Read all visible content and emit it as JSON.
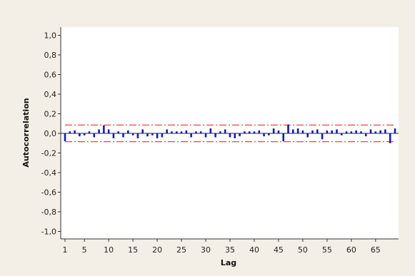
{
  "chart_data": {
    "type": "bar",
    "title": "",
    "xlabel": "Lag",
    "ylabel": "Autocorrelation",
    "ylim": [
      -1.0,
      1.0
    ],
    "xlim": [
      1,
      69
    ],
    "yticks": [
      1.0,
      0.8,
      0.6,
      0.4,
      0.2,
      0.0,
      -0.2,
      -0.4,
      -0.6,
      -0.8,
      -1.0
    ],
    "ytick_labels": [
      "1,0",
      "0,8",
      "0,6",
      "0,4",
      "0,2",
      "0,0",
      "-0,2",
      "-0,4",
      "-0,6",
      "-0,8",
      "-1,0"
    ],
    "xticks": [
      1,
      5,
      10,
      15,
      20,
      25,
      30,
      35,
      40,
      45,
      50,
      55,
      60,
      65
    ],
    "xtick_labels": [
      "1",
      "5",
      "10",
      "15",
      "20",
      "25",
      "30",
      "35",
      "40",
      "45",
      "50",
      "55",
      "60",
      "65"
    ],
    "grid": false,
    "lags": [
      1,
      2,
      3,
      4,
      5,
      6,
      7,
      8,
      9,
      10,
      11,
      12,
      13,
      14,
      15,
      16,
      17,
      18,
      19,
      20,
      21,
      22,
      23,
      24,
      25,
      26,
      27,
      28,
      29,
      30,
      31,
      32,
      33,
      34,
      35,
      36,
      37,
      38,
      39,
      40,
      41,
      42,
      43,
      44,
      45,
      46,
      47,
      48,
      49,
      50,
      51,
      52,
      53,
      54,
      55,
      56,
      57,
      58,
      59,
      60,
      61,
      62,
      63,
      64,
      65,
      66,
      67,
      68,
      69
    ],
    "values": [
      -0.08,
      0.02,
      0.03,
      -0.03,
      -0.02,
      0.02,
      -0.04,
      0.04,
      0.08,
      0.04,
      -0.05,
      0.02,
      -0.04,
      0.03,
      -0.02,
      -0.05,
      0.04,
      -0.03,
      -0.02,
      -0.05,
      -0.04,
      0.04,
      0.02,
      0.02,
      0.02,
      0.03,
      -0.04,
      0.02,
      0.02,
      -0.04,
      0.05,
      -0.04,
      0.02,
      0.04,
      -0.04,
      -0.05,
      -0.03,
      0.02,
      0.02,
      0.02,
      0.03,
      -0.03,
      -0.02,
      0.05,
      0.03,
      -0.08,
      0.09,
      0.04,
      0.05,
      0.03,
      -0.04,
      0.03,
      0.04,
      -0.06,
      0.03,
      0.03,
      0.04,
      -0.02,
      0.02,
      0.02,
      0.03,
      0.02,
      -0.03,
      0.04,
      0.02,
      0.03,
      0.04,
      -0.1,
      0.05
    ],
    "bar_color": "#1a1aa8",
    "confidence_limits": {
      "upper": 0.085,
      "lower": -0.085,
      "color": "#e8332e",
      "style": "dash-dot"
    },
    "zero_line_color": "#1a1aa8",
    "background_color": "#f4efe6",
    "plot_background_color": "#ffffff",
    "axis_color": "#333333"
  }
}
